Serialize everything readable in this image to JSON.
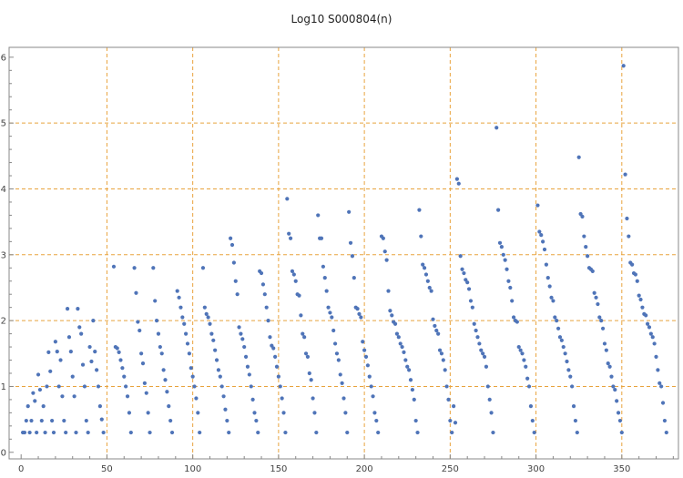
{
  "chart_data": {
    "type": "scatter",
    "title": "Log10 S000804(n)",
    "xlabel": "",
    "ylabel": "",
    "xlim": [
      -7,
      383
    ],
    "ylim": [
      -0.1,
      6.15
    ],
    "x_ticks": [
      0,
      50,
      100,
      150,
      200,
      250,
      300,
      350
    ],
    "y_ticks": [
      0,
      1,
      2,
      3,
      4,
      5,
      6
    ],
    "x_grid": [
      50,
      100,
      150,
      200,
      250,
      300,
      350
    ],
    "y_grid": [
      1,
      2,
      3,
      4,
      5
    ],
    "grid": true,
    "colors": {
      "points": "#4f74b8",
      "grid": "#e8a33d",
      "frame": "#888888"
    },
    "points": [
      [
        1,
        0.3
      ],
      [
        2,
        0.3
      ],
      [
        3,
        0.48
      ],
      [
        4,
        0.7
      ],
      [
        5,
        0.3
      ],
      [
        6,
        0.48
      ],
      [
        7,
        0.9
      ],
      [
        8,
        0.78
      ],
      [
        9,
        0.3
      ],
      [
        10,
        1.18
      ],
      [
        11,
        0.95
      ],
      [
        12,
        0.48
      ],
      [
        13,
        0.7
      ],
      [
        14,
        0.3
      ],
      [
        15,
        1.0
      ],
      [
        16,
        1.52
      ],
      [
        17,
        1.23
      ],
      [
        18,
        0.48
      ],
      [
        19,
        0.3
      ],
      [
        20,
        1.68
      ],
      [
        21,
        1.53
      ],
      [
        22,
        1.0
      ],
      [
        23,
        1.4
      ],
      [
        24,
        0.85
      ],
      [
        25,
        0.48
      ],
      [
        26,
        0.3
      ],
      [
        27,
        2.18
      ],
      [
        28,
        1.75
      ],
      [
        29,
        1.53
      ],
      [
        30,
        1.15
      ],
      [
        31,
        0.85
      ],
      [
        32,
        0.3
      ],
      [
        33,
        2.18
      ],
      [
        34,
        1.9
      ],
      [
        35,
        1.8
      ],
      [
        36,
        1.33
      ],
      [
        37,
        1.0
      ],
      [
        38,
        0.48
      ],
      [
        39,
        0.3
      ],
      [
        40,
        1.6
      ],
      [
        41,
        1.38
      ],
      [
        42,
        2.0
      ],
      [
        43,
        1.53
      ],
      [
        44,
        1.25
      ],
      [
        45,
        1.0
      ],
      [
        46,
        0.7
      ],
      [
        47,
        0.5
      ],
      [
        48,
        0.3
      ],
      [
        54,
        2.82
      ],
      [
        55,
        1.6
      ],
      [
        56,
        1.58
      ],
      [
        57,
        1.52
      ],
      [
        58,
        1.4
      ],
      [
        59,
        1.28
      ],
      [
        60,
        1.15
      ],
      [
        61,
        1.0
      ],
      [
        62,
        0.85
      ],
      [
        63,
        0.6
      ],
      [
        64,
        0.3
      ],
      [
        66,
        2.8
      ],
      [
        67,
        2.42
      ],
      [
        68,
        1.98
      ],
      [
        69,
        1.85
      ],
      [
        70,
        1.5
      ],
      [
        71,
        1.35
      ],
      [
        72,
        1.05
      ],
      [
        73,
        0.9
      ],
      [
        74,
        0.6
      ],
      [
        75,
        0.3
      ],
      [
        77,
        2.8
      ],
      [
        78,
        2.3
      ],
      [
        79,
        2.0
      ],
      [
        80,
        1.8
      ],
      [
        81,
        1.6
      ],
      [
        82,
        1.5
      ],
      [
        83,
        1.25
      ],
      [
        84,
        1.1
      ],
      [
        85,
        0.92
      ],
      [
        86,
        0.7
      ],
      [
        87,
        0.48
      ],
      [
        88,
        0.3
      ],
      [
        91,
        2.45
      ],
      [
        92,
        2.35
      ],
      [
        93,
        2.2
      ],
      [
        94,
        2.05
      ],
      [
        95,
        1.95
      ],
      [
        96,
        1.8
      ],
      [
        97,
        1.65
      ],
      [
        98,
        1.5
      ],
      [
        99,
        1.28
      ],
      [
        100,
        1.15
      ],
      [
        101,
        1.0
      ],
      [
        102,
        0.82
      ],
      [
        103,
        0.6
      ],
      [
        104,
        0.3
      ],
      [
        106,
        2.8
      ],
      [
        107,
        2.2
      ],
      [
        108,
        2.1
      ],
      [
        109,
        2.05
      ],
      [
        110,
        1.95
      ],
      [
        111,
        1.8
      ],
      [
        112,
        1.7
      ],
      [
        113,
        1.55
      ],
      [
        114,
        1.4
      ],
      [
        115,
        1.25
      ],
      [
        116,
        1.15
      ],
      [
        117,
        1.0
      ],
      [
        118,
        0.85
      ],
      [
        119,
        0.65
      ],
      [
        120,
        0.48
      ],
      [
        121,
        0.3
      ],
      [
        122,
        3.25
      ],
      [
        123,
        3.15
      ],
      [
        124,
        2.88
      ],
      [
        125,
        2.6
      ],
      [
        126,
        2.4
      ],
      [
        127,
        1.9
      ],
      [
        128,
        1.8
      ],
      [
        129,
        1.72
      ],
      [
        130,
        1.6
      ],
      [
        131,
        1.45
      ],
      [
        132,
        1.3
      ],
      [
        133,
        1.18
      ],
      [
        134,
        1.0
      ],
      [
        135,
        0.8
      ],
      [
        136,
        0.6
      ],
      [
        137,
        0.48
      ],
      [
        138,
        0.3
      ],
      [
        139,
        2.75
      ],
      [
        140,
        2.72
      ],
      [
        141,
        2.55
      ],
      [
        142,
        2.4
      ],
      [
        143,
        2.2
      ],
      [
        144,
        2.0
      ],
      [
        145,
        1.75
      ],
      [
        146,
        1.62
      ],
      [
        147,
        1.58
      ],
      [
        148,
        1.45
      ],
      [
        149,
        1.3
      ],
      [
        150,
        1.15
      ],
      [
        151,
        1.0
      ],
      [
        152,
        0.82
      ],
      [
        153,
        0.6
      ],
      [
        154,
        0.3
      ],
      [
        155,
        3.85
      ],
      [
        156,
        3.32
      ],
      [
        157,
        3.25
      ],
      [
        158,
        2.75
      ],
      [
        159,
        2.7
      ],
      [
        160,
        2.6
      ],
      [
        161,
        2.4
      ],
      [
        162,
        2.38
      ],
      [
        163,
        2.08
      ],
      [
        164,
        1.8
      ],
      [
        165,
        1.75
      ],
      [
        166,
        1.5
      ],
      [
        167,
        1.45
      ],
      [
        168,
        1.2
      ],
      [
        169,
        1.1
      ],
      [
        170,
        0.82
      ],
      [
        171,
        0.6
      ],
      [
        172,
        0.3
      ],
      [
        173,
        3.6
      ],
      [
        174,
        3.25
      ],
      [
        175,
        3.25
      ],
      [
        176,
        2.82
      ],
      [
        177,
        2.65
      ],
      [
        178,
        2.45
      ],
      [
        179,
        2.2
      ],
      [
        180,
        2.12
      ],
      [
        181,
        2.05
      ],
      [
        182,
        1.85
      ],
      [
        183,
        1.65
      ],
      [
        184,
        1.5
      ],
      [
        185,
        1.4
      ],
      [
        186,
        1.18
      ],
      [
        187,
        1.05
      ],
      [
        188,
        0.82
      ],
      [
        189,
        0.6
      ],
      [
        190,
        0.3
      ],
      [
        191,
        3.65
      ],
      [
        192,
        3.18
      ],
      [
        193,
        2.98
      ],
      [
        194,
        2.65
      ],
      [
        195,
        2.2
      ],
      [
        196,
        2.18
      ],
      [
        197,
        2.1
      ],
      [
        198,
        2.05
      ],
      [
        199,
        1.68
      ],
      [
        200,
        1.55
      ],
      [
        201,
        1.45
      ],
      [
        202,
        1.32
      ],
      [
        203,
        1.15
      ],
      [
        204,
        1.0
      ],
      [
        205,
        0.85
      ],
      [
        206,
        0.6
      ],
      [
        207,
        0.48
      ],
      [
        208,
        0.3
      ],
      [
        210,
        3.28
      ],
      [
        211,
        3.25
      ],
      [
        212,
        3.05
      ],
      [
        213,
        2.92
      ],
      [
        214,
        2.45
      ],
      [
        215,
        2.15
      ],
      [
        216,
        2.08
      ],
      [
        217,
        1.98
      ],
      [
        218,
        1.95
      ],
      [
        219,
        1.8
      ],
      [
        220,
        1.75
      ],
      [
        221,
        1.65
      ],
      [
        222,
        1.6
      ],
      [
        223,
        1.52
      ],
      [
        224,
        1.4
      ],
      [
        225,
        1.3
      ],
      [
        226,
        1.25
      ],
      [
        227,
        1.1
      ],
      [
        228,
        0.95
      ],
      [
        229,
        0.8
      ],
      [
        230,
        0.48
      ],
      [
        231,
        0.3
      ],
      [
        232,
        3.68
      ],
      [
        233,
        3.28
      ],
      [
        234,
        2.85
      ],
      [
        235,
        2.8
      ],
      [
        236,
        2.7
      ],
      [
        237,
        2.6
      ],
      [
        238,
        2.5
      ],
      [
        239,
        2.45
      ],
      [
        240,
        2.02
      ],
      [
        241,
        1.92
      ],
      [
        242,
        1.85
      ],
      [
        243,
        1.8
      ],
      [
        244,
        1.55
      ],
      [
        245,
        1.5
      ],
      [
        246,
        1.4
      ],
      [
        247,
        1.25
      ],
      [
        248,
        1.0
      ],
      [
        249,
        0.8
      ],
      [
        250,
        0.48
      ],
      [
        251,
        0.3
      ],
      [
        252,
        0.7
      ],
      [
        253,
        0.45
      ],
      [
        254,
        4.15
      ],
      [
        255,
        4.08
      ],
      [
        256,
        2.98
      ],
      [
        257,
        2.78
      ],
      [
        258,
        2.72
      ],
      [
        259,
        2.62
      ],
      [
        260,
        2.58
      ],
      [
        261,
        2.48
      ],
      [
        262,
        2.3
      ],
      [
        263,
        2.2
      ],
      [
        264,
        1.95
      ],
      [
        265,
        1.85
      ],
      [
        266,
        1.75
      ],
      [
        267,
        1.65
      ],
      [
        268,
        1.55
      ],
      [
        269,
        1.5
      ],
      [
        270,
        1.45
      ],
      [
        271,
        1.3
      ],
      [
        272,
        1.0
      ],
      [
        273,
        0.8
      ],
      [
        274,
        0.6
      ],
      [
        275,
        0.3
      ],
      [
        277,
        4.93
      ],
      [
        278,
        3.68
      ],
      [
        279,
        3.18
      ],
      [
        280,
        3.12
      ],
      [
        281,
        3.0
      ],
      [
        282,
        2.92
      ],
      [
        283,
        2.78
      ],
      [
        284,
        2.6
      ],
      [
        285,
        2.5
      ],
      [
        286,
        2.3
      ],
      [
        287,
        2.05
      ],
      [
        288,
        2.0
      ],
      [
        289,
        1.98
      ],
      [
        290,
        1.6
      ],
      [
        291,
        1.55
      ],
      [
        292,
        1.5
      ],
      [
        293,
        1.4
      ],
      [
        294,
        1.3
      ],
      [
        295,
        1.12
      ],
      [
        296,
        1.0
      ],
      [
        297,
        0.7
      ],
      [
        298,
        0.48
      ],
      [
        299,
        0.3
      ],
      [
        301,
        3.75
      ],
      [
        302,
        3.35
      ],
      [
        303,
        3.3
      ],
      [
        304,
        3.2
      ],
      [
        305,
        3.08
      ],
      [
        306,
        2.85
      ],
      [
        307,
        2.65
      ],
      [
        308,
        2.52
      ],
      [
        309,
        2.35
      ],
      [
        310,
        2.3
      ],
      [
        311,
        2.05
      ],
      [
        312,
        2.0
      ],
      [
        313,
        1.88
      ],
      [
        314,
        1.75
      ],
      [
        315,
        1.7
      ],
      [
        316,
        1.6
      ],
      [
        317,
        1.5
      ],
      [
        318,
        1.38
      ],
      [
        319,
        1.25
      ],
      [
        320,
        1.15
      ],
      [
        321,
        1.0
      ],
      [
        322,
        0.7
      ],
      [
        323,
        0.48
      ],
      [
        324,
        0.3
      ],
      [
        325,
        4.48
      ],
      [
        326,
        3.62
      ],
      [
        327,
        3.58
      ],
      [
        328,
        3.28
      ],
      [
        329,
        3.12
      ],
      [
        330,
        2.98
      ],
      [
        331,
        2.8
      ],
      [
        332,
        2.78
      ],
      [
        333,
        2.75
      ],
      [
        334,
        2.42
      ],
      [
        335,
        2.35
      ],
      [
        336,
        2.25
      ],
      [
        337,
        2.05
      ],
      [
        338,
        2.0
      ],
      [
        339,
        1.88
      ],
      [
        340,
        1.65
      ],
      [
        341,
        1.55
      ],
      [
        342,
        1.35
      ],
      [
        343,
        1.3
      ],
      [
        344,
        1.15
      ],
      [
        345,
        1.0
      ],
      [
        346,
        0.95
      ],
      [
        347,
        0.78
      ],
      [
        348,
        0.6
      ],
      [
        349,
        0.48
      ],
      [
        350,
        0.3
      ],
      [
        351,
        5.87
      ],
      [
        352,
        4.22
      ],
      [
        353,
        3.55
      ],
      [
        354,
        3.28
      ],
      [
        355,
        2.88
      ],
      [
        356,
        2.85
      ],
      [
        357,
        2.72
      ],
      [
        358,
        2.7
      ],
      [
        359,
        2.6
      ],
      [
        360,
        2.38
      ],
      [
        361,
        2.32
      ],
      [
        362,
        2.2
      ],
      [
        363,
        2.1
      ],
      [
        364,
        2.08
      ],
      [
        365,
        1.95
      ],
      [
        366,
        1.9
      ],
      [
        367,
        1.8
      ],
      [
        368,
        1.75
      ],
      [
        369,
        1.65
      ],
      [
        370,
        1.45
      ],
      [
        371,
        1.25
      ],
      [
        372,
        1.05
      ],
      [
        373,
        1.0
      ],
      [
        374,
        0.75
      ],
      [
        375,
        0.48
      ],
      [
        376,
        0.3
      ]
    ]
  }
}
